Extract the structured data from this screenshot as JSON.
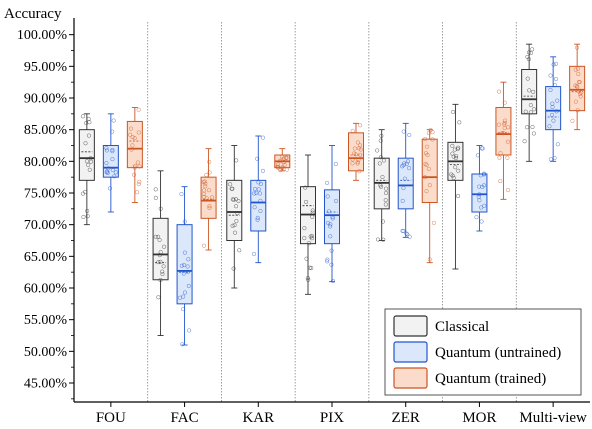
{
  "chart_data": {
    "type": "box",
    "ylabel": "Accuracy",
    "ylim": [
      0.42,
      1.02
    ],
    "ytick_values": [
      0.45,
      0.5,
      0.55,
      0.6,
      0.65,
      0.7,
      0.75,
      0.8,
      0.85,
      0.9,
      0.95,
      1.0
    ],
    "ytick_labels": [
      "45.00%",
      "50.00%",
      "55.00%",
      "60.00%",
      "65.00%",
      "70.00%",
      "75.00%",
      "80.00%",
      "85.00%",
      "90.00%",
      "95.00%",
      "100.00%"
    ],
    "categories": [
      "FOU",
      "FAC",
      "KAR",
      "PIX",
      "ZER",
      "MOR",
      "Multi-view"
    ],
    "legend_position": "bottom-right",
    "series": [
      {
        "name": "Classical",
        "edge_color": "#333333",
        "fill_color": "#f2f2f2",
        "boxes": [
          {
            "min": 0.7,
            "q1": 0.77,
            "median": 0.805,
            "mean": 0.815,
            "q3": 0.85,
            "max": 0.875
          },
          {
            "min": 0.525,
            "q1": 0.613,
            "median": 0.653,
            "mean": 0.64,
            "q3": 0.71,
            "max": 0.785
          },
          {
            "min": 0.6,
            "q1": 0.675,
            "median": 0.72,
            "mean": 0.715,
            "q3": 0.77,
            "max": 0.825
          },
          {
            "min": 0.59,
            "q1": 0.67,
            "median": 0.716,
            "mean": 0.73,
            "q3": 0.76,
            "max": 0.81
          },
          {
            "min": 0.675,
            "q1": 0.725,
            "median": 0.766,
            "mean": 0.77,
            "q3": 0.805,
            "max": 0.85
          },
          {
            "min": 0.63,
            "q1": 0.77,
            "median": 0.8,
            "mean": 0.795,
            "q3": 0.83,
            "max": 0.89
          },
          {
            "min": 0.8,
            "q1": 0.875,
            "median": 0.898,
            "mean": 0.903,
            "q3": 0.945,
            "max": 0.985
          }
        ]
      },
      {
        "name": "Quantum (untrained)",
        "edge_color": "#2255cc",
        "fill_color": "#dbe7fa",
        "boxes": [
          {
            "min": 0.72,
            "q1": 0.775,
            "median": 0.79,
            "mean": 0.79,
            "q3": 0.825,
            "max": 0.875
          },
          {
            "min": 0.51,
            "q1": 0.575,
            "median": 0.627,
            "mean": 0.625,
            "q3": 0.7,
            "max": 0.76
          },
          {
            "min": 0.64,
            "q1": 0.69,
            "median": 0.735,
            "mean": 0.735,
            "q3": 0.77,
            "max": 0.84
          },
          {
            "min": 0.61,
            "q1": 0.67,
            "median": 0.715,
            "mean": 0.72,
            "q3": 0.755,
            "max": 0.825
          },
          {
            "min": 0.68,
            "q1": 0.725,
            "median": 0.762,
            "mean": 0.77,
            "q3": 0.805,
            "max": 0.86
          },
          {
            "min": 0.69,
            "q1": 0.72,
            "median": 0.748,
            "mean": 0.748,
            "q3": 0.78,
            "max": 0.825
          },
          {
            "min": 0.8,
            "q1": 0.85,
            "median": 0.88,
            "mean": 0.87,
            "q3": 0.918,
            "max": 0.965
          }
        ]
      },
      {
        "name": "Quantum (trained)",
        "edge_color": "#cc5522",
        "fill_color": "#fbdccb",
        "boxes": [
          {
            "min": 0.735,
            "q1": 0.79,
            "median": 0.82,
            "mean": 0.832,
            "q3": 0.863,
            "max": 0.885
          },
          {
            "min": 0.66,
            "q1": 0.71,
            "median": 0.738,
            "mean": 0.74,
            "q3": 0.775,
            "max": 0.82
          },
          {
            "min": 0.785,
            "q1": 0.79,
            "median": 0.8,
            "mean": 0.8,
            "q3": 0.81,
            "max": 0.82
          },
          {
            "min": 0.77,
            "q1": 0.785,
            "median": 0.805,
            "mean": 0.81,
            "q3": 0.845,
            "max": 0.86
          },
          {
            "min": 0.64,
            "q1": 0.735,
            "median": 0.775,
            "mean": 0.775,
            "q3": 0.835,
            "max": 0.85
          },
          {
            "min": 0.74,
            "q1": 0.81,
            "median": 0.843,
            "mean": 0.845,
            "q3": 0.885,
            "max": 0.925
          },
          {
            "min": 0.85,
            "q1": 0.88,
            "median": 0.913,
            "mean": 0.91,
            "q3": 0.95,
            "max": 0.985
          }
        ]
      }
    ]
  }
}
